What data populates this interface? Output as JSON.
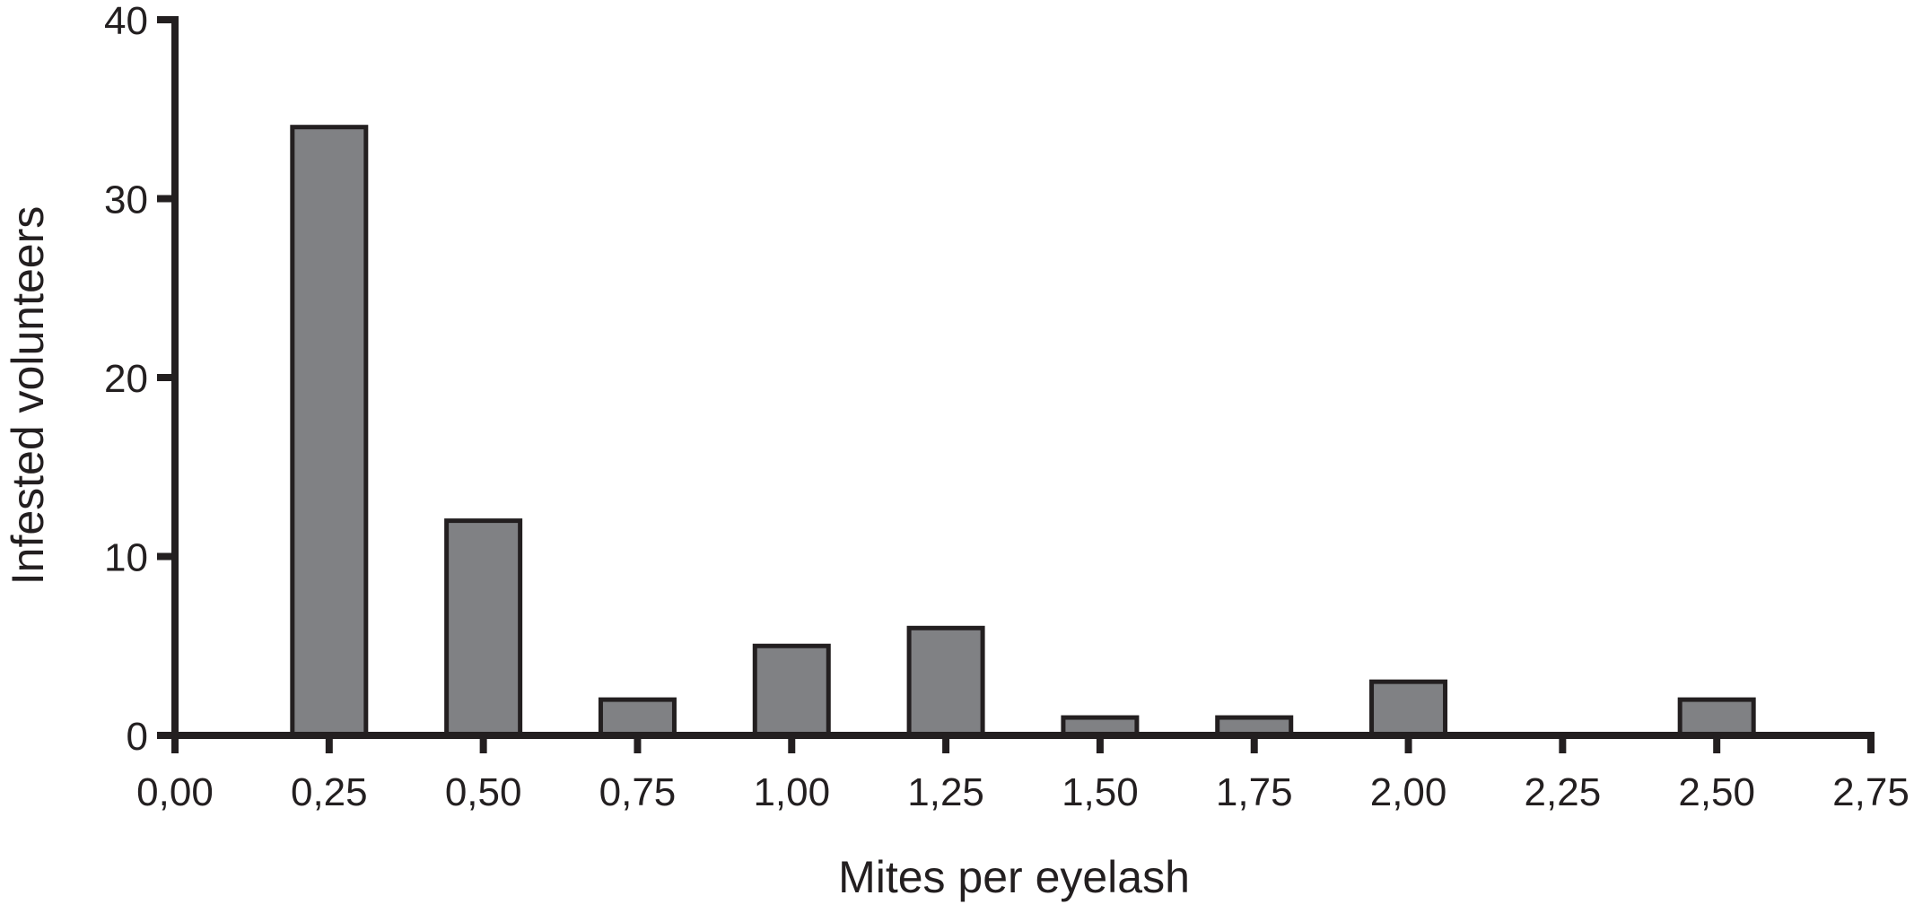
{
  "chart_data": {
    "type": "bar",
    "xlabel": "Mites per eyelash",
    "ylabel": "Infested volunteers",
    "x_ticks": [
      "0,00",
      "0,25",
      "0,50",
      "0,75",
      "1,00",
      "1,25",
      "1,50",
      "1,75",
      "2,00",
      "2,25",
      "2,50",
      "2,75"
    ],
    "y_ticks": [
      "0",
      "10",
      "20",
      "30",
      "40"
    ],
    "xlim": [
      0,
      2.75
    ],
    "ylim": [
      0,
      40
    ],
    "categories": [
      "0,25",
      "0,50",
      "0,75",
      "1,00",
      "1,25",
      "1,50",
      "1,75",
      "2,00",
      "2,25",
      "2,50"
    ],
    "x_values": [
      0.25,
      0.5,
      0.75,
      1.0,
      1.25,
      1.5,
      1.75,
      2.0,
      2.25,
      2.5
    ],
    "values": [
      34,
      12,
      2,
      5,
      6,
      1,
      1,
      3,
      0,
      2
    ],
    "colors": {
      "bar_fill": "#808184",
      "bar_stroke": "#231f20",
      "axis": "#231f20"
    },
    "grid": false,
    "legend": "none"
  }
}
